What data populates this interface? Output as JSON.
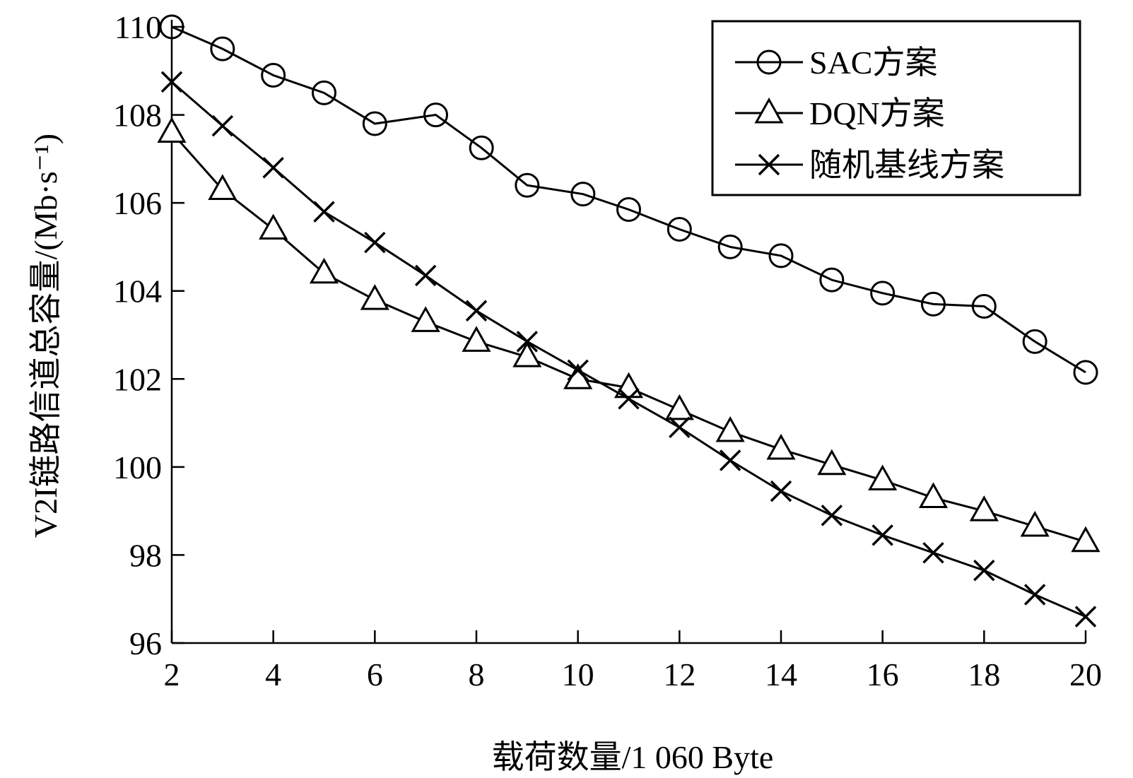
{
  "chart_data": {
    "type": "line",
    "xlabel": "载荷数量/1 060 Byte",
    "ylabel": "V2I链路信道总容量/(Mb·s⁻¹)",
    "xlim": [
      2,
      20
    ],
    "ylim": [
      96,
      110
    ],
    "xticks": [
      "2",
      "4",
      "6",
      "8",
      "10",
      "12",
      "14",
      "16",
      "18",
      "20"
    ],
    "yticks": [
      "96",
      "98",
      "100",
      "102",
      "104",
      "106",
      "108",
      "110"
    ],
    "grid": false,
    "legend_position": "top-right",
    "series": [
      {
        "name": "SAC方案",
        "marker": "circle",
        "x": [
          2,
          3,
          4,
          5,
          6,
          7.2,
          8.1,
          9,
          10.1,
          11,
          12,
          13,
          14,
          15,
          16,
          17,
          18,
          19,
          20
        ],
        "y": [
          110.0,
          109.5,
          108.9,
          108.5,
          107.8,
          108.0,
          107.25,
          106.4,
          106.2,
          105.85,
          105.4,
          105.0,
          104.8,
          104.25,
          103.95,
          103.7,
          103.65,
          102.85,
          102.15
        ]
      },
      {
        "name": "DQN方案",
        "marker": "triangle",
        "x": [
          2,
          3,
          4,
          5,
          6,
          7,
          8,
          9,
          10,
          11,
          12,
          13,
          14,
          15,
          16,
          17,
          18,
          19,
          20
        ],
        "y": [
          107.6,
          106.3,
          105.4,
          104.4,
          103.8,
          103.3,
          102.85,
          102.5,
          102.0,
          101.8,
          101.3,
          100.8,
          100.4,
          100.05,
          99.7,
          99.3,
          99.0,
          98.65,
          98.3
        ]
      },
      {
        "name": "随机基线方案",
        "marker": "x",
        "x": [
          2,
          3,
          4,
          5,
          6,
          7,
          8,
          9,
          10,
          11,
          12,
          13,
          14,
          15,
          16,
          17,
          18,
          19,
          20
        ],
        "y": [
          108.75,
          107.75,
          106.8,
          105.8,
          105.1,
          104.35,
          103.55,
          102.85,
          102.2,
          101.55,
          100.9,
          100.15,
          99.45,
          98.9,
          98.45,
          98.05,
          97.65,
          97.1,
          96.6
        ]
      }
    ]
  }
}
